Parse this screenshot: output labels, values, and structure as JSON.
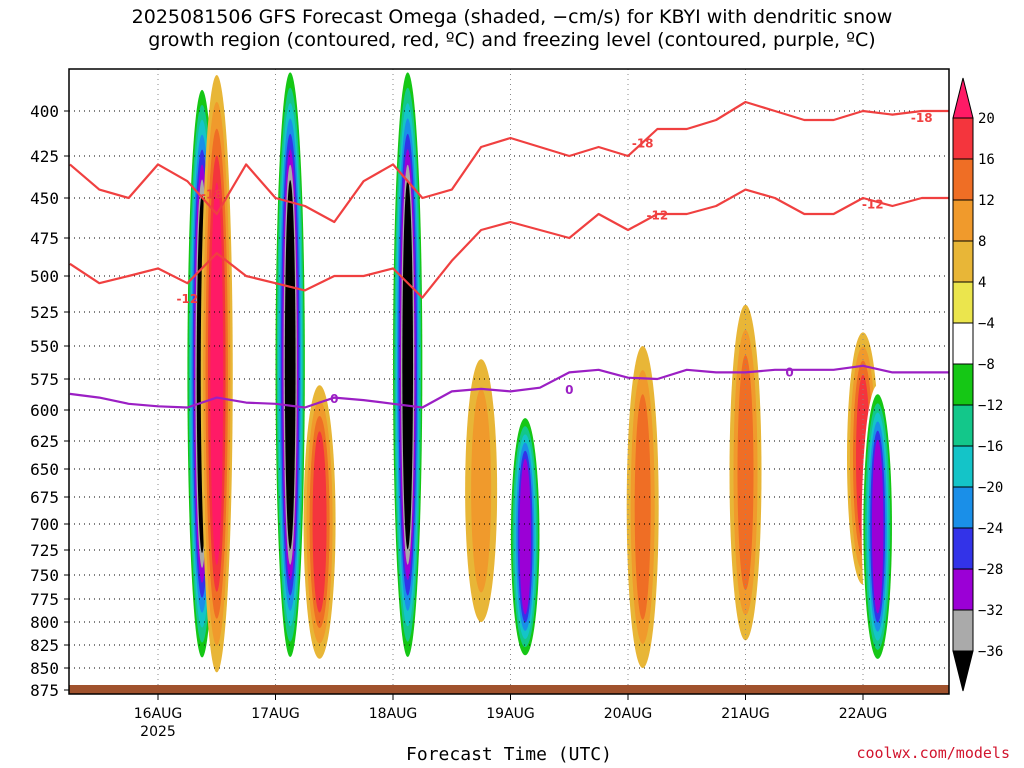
{
  "title_line1": "2025081506 GFS Forecast Omega (shaded, −cm/s) for KBYI with dendritic snow",
  "title_line2": "growth region (contoured, red, ºC) and freezing level (contoured, purple, ºC)",
  "xlabel": "Forecast Time (UTC)",
  "credit": "coolwx.com/models",
  "colors": {
    "dsg_contour": "#f04040",
    "freezing_contour": "#9b1fc4",
    "ground": "#a0522d"
  },
  "chart_data": {
    "type": "heatmap",
    "ylabel": "",
    "yscale": "pressure (hPa), reversed",
    "ylim": [
      375,
      880
    ],
    "yticks": [
      400,
      425,
      450,
      475,
      500,
      525,
      550,
      575,
      600,
      625,
      650,
      675,
      700,
      725,
      750,
      775,
      800,
      825,
      850,
      875
    ],
    "x_start": "2025-08-15 06Z",
    "x_end": "2025-08-22 21Z",
    "xticks": [
      {
        "label": "16AUG",
        "sub": "2025",
        "time": "2025-08-16 00Z"
      },
      {
        "label": "17AUG",
        "sub": "",
        "time": "2025-08-17 00Z"
      },
      {
        "label": "18AUG",
        "sub": "",
        "time": "2025-08-18 00Z"
      },
      {
        "label": "19AUG",
        "sub": "",
        "time": "2025-08-19 00Z"
      },
      {
        "label": "20AUG",
        "sub": "",
        "time": "2025-08-20 00Z"
      },
      {
        "label": "21AUG",
        "sub": "",
        "time": "2025-08-21 00Z"
      },
      {
        "label": "22AUG",
        "sub": "",
        "time": "2025-08-22 00Z"
      }
    ],
    "grid": true,
    "colorbar": {
      "labels": [
        "20",
        "16",
        "12",
        "8",
        "4",
        "−4",
        "−8",
        "−12",
        "−16",
        "−20",
        "−24",
        "−28",
        "−32",
        "−36"
      ],
      "colors": [
        "#ff1a66",
        "#f4353d",
        "#ef6e25",
        "#f09a2c",
        "#e8b637",
        "#ebe54d",
        "#ffffff",
        "#15c715",
        "#13c78a",
        "#14c4c8",
        "#1a8fe8",
        "#3333e8",
        "#9b00d6",
        "#aaaaaa",
        "#000000"
      ]
    },
    "contour_labels": {
      "m18": "-18",
      "m12": "-12",
      "zero": "0"
    },
    "series": [
      {
        "name": "-18°C",
        "color": "#f04040",
        "x_hours": [
          0,
          6,
          12,
          18,
          24,
          30,
          36,
          42,
          48,
          54,
          60,
          66,
          72,
          78,
          84,
          90,
          96,
          102,
          108,
          114,
          120,
          126,
          132,
          138,
          144,
          150,
          156,
          162,
          168,
          174,
          183
        ],
        "pressure": [
          430,
          445,
          450,
          430,
          440,
          460,
          430,
          450,
          455,
          465,
          440,
          430,
          450,
          445,
          420,
          415,
          420,
          425,
          420,
          425,
          410,
          410,
          405,
          395,
          400,
          405,
          405,
          400,
          402,
          400,
          400
        ]
      },
      {
        "name": "-12°C",
        "color": "#f04040",
        "x_hours": [
          0,
          6,
          12,
          18,
          24,
          30,
          36,
          42,
          48,
          54,
          60,
          66,
          72,
          78,
          84,
          90,
          96,
          102,
          108,
          114,
          120,
          126,
          132,
          138,
          144,
          150,
          156,
          162,
          168,
          174,
          183
        ],
        "pressure": [
          492,
          505,
          500,
          495,
          505,
          485,
          500,
          505,
          510,
          500,
          500,
          495,
          515,
          490,
          470,
          465,
          470,
          475,
          460,
          470,
          460,
          460,
          455,
          445,
          450,
          460,
          460,
          450,
          455,
          450,
          450
        ]
      },
      {
        "name": "0°C",
        "color": "#9b1fc4",
        "x_hours": [
          0,
          6,
          12,
          18,
          24,
          30,
          36,
          42,
          48,
          54,
          60,
          66,
          72,
          78,
          84,
          90,
          96,
          102,
          108,
          114,
          120,
          126,
          132,
          138,
          144,
          150,
          156,
          162,
          168,
          174,
          183
        ],
        "pressure": [
          587,
          590,
          595,
          597,
          598,
          590,
          594,
          595,
          598,
          590,
          592,
          595,
          598,
          585,
          583,
          585,
          582,
          570,
          568,
          574,
          575,
          568,
          570,
          570,
          568,
          568,
          568,
          565,
          570,
          570,
          570
        ]
      }
    ],
    "shading_features": [
      {
        "time_h": 27,
        "p_top": 380,
        "p_bot": 855,
        "omega": -36
      },
      {
        "time_h": 30,
        "p_top": 380,
        "p_bot": 855,
        "omega": 20
      },
      {
        "time_h": 45,
        "p_top": 370,
        "p_bot": 855,
        "omega": -36
      },
      {
        "time_h": 51,
        "p_top": 580,
        "p_bot": 840,
        "omega": 18
      },
      {
        "time_h": 69,
        "p_top": 370,
        "p_bot": 855,
        "omega": -36
      },
      {
        "time_h": 84,
        "p_top": 560,
        "p_bot": 800,
        "omega": 10
      },
      {
        "time_h": 93,
        "p_top": 600,
        "p_bot": 845,
        "omega": -28
      },
      {
        "time_h": 117,
        "p_top": 550,
        "p_bot": 850,
        "omega": 12
      },
      {
        "time_h": 138,
        "p_top": 520,
        "p_bot": 820,
        "omega": 12
      },
      {
        "time_h": 162,
        "p_top": 540,
        "p_bot": 760,
        "omega": 18
      },
      {
        "time_h": 165,
        "p_top": 580,
        "p_bot": 850,
        "omega": -30
      }
    ]
  }
}
